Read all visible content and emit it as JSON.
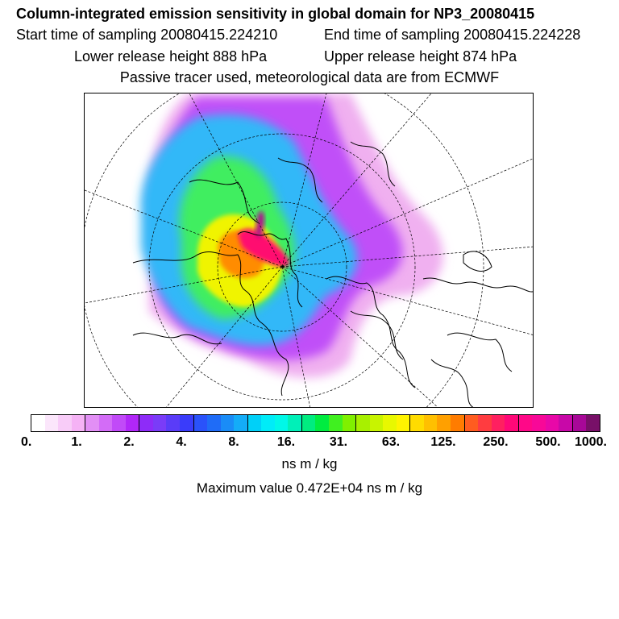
{
  "header": {
    "title": "Column-integrated emission sensitivity in global domain for NP3_20080415",
    "start_time": "Start time of sampling 20080415.224210",
    "end_time": "End time of sampling 20080415.224228",
    "lower_height": "Lower release height  888 hPa",
    "upper_height": "Upper release height  874 hPa",
    "tracer_info": "Passive tracer used, meteorological data are from ECMWF"
  },
  "colorbar": {
    "colors": [
      "#ffffff",
      "#fbe6fb",
      "#f8ccf8",
      "#f5b2f5",
      "#e28ff5",
      "#d36cf7",
      "#c14af8",
      "#b127f8",
      "#8e2cf8",
      "#7a3cf8",
      "#5a3cf8",
      "#3a3cfa",
      "#2a52fa",
      "#1f6cf7",
      "#1a8cf7",
      "#14acf8",
      "#00d0f8",
      "#00ecf8",
      "#00f8e8",
      "#00f0b8",
      "#00ec80",
      "#00ec40",
      "#40f020",
      "#80f000",
      "#a8f000",
      "#c8f400",
      "#e8f800",
      "#fff400",
      "#ffdc00",
      "#ffc000",
      "#ffa000",
      "#ff7c00",
      "#ff5c20",
      "#ff3c40",
      "#ff2060",
      "#ff0878",
      "#ff0888",
      "#f80898",
      "#e808a8",
      "#c808a8",
      "#a80898",
      "#781068"
    ],
    "tick_labels": [
      "0.",
      "1.",
      "2.",
      "4.",
      "8.",
      "16.",
      "31.",
      "63.",
      "125.",
      "250.",
      "500.",
      "1000."
    ],
    "units": "ns m / kg"
  },
  "max_value": "Maximum value  0.472E+04 ns m / kg"
}
